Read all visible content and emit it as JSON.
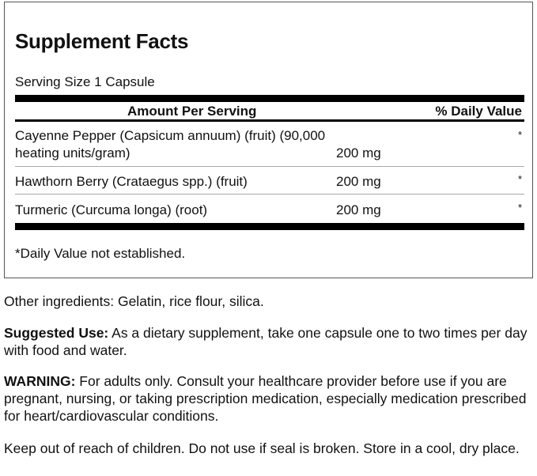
{
  "label": {
    "title": "Supplement Facts",
    "serving_size": "Serving Size 1 Capsule",
    "header_amount": "Amount Per Serving",
    "header_dv": "% Daily Value",
    "rows": [
      {
        "name_line1": "Cayenne Pepper (Capsicum annuum) (fruit) (90,000",
        "name_line2": "heating units/gram)",
        "amount": "200 mg",
        "dv": "*"
      },
      {
        "name_line1": "Hawthorn Berry (Crataegus spp.) (fruit)",
        "amount": "200 mg",
        "dv": "*"
      },
      {
        "name_line1": "Turmeric (Curcuma longa) (root)",
        "amount": "200 mg",
        "dv": "*"
      }
    ],
    "footnote": "*Daily Value not established."
  },
  "other_ingredients": "Other ingredients: Gelatin, rice flour, silica.",
  "suggested_use": {
    "label": "Suggested Use:",
    "text": " As a dietary supplement, take one capsule one to two times per day with food and water."
  },
  "warning": {
    "label": "WARNING:",
    "text": " For adults only. Consult your healthcare provider before use if you are pregnant, nursing, or taking prescription medication, especially medication prescribed for heart/cardiovascular conditions."
  },
  "storage": "Keep out of reach of children. Do not use if seal is broken. Store in a cool, dry place."
}
